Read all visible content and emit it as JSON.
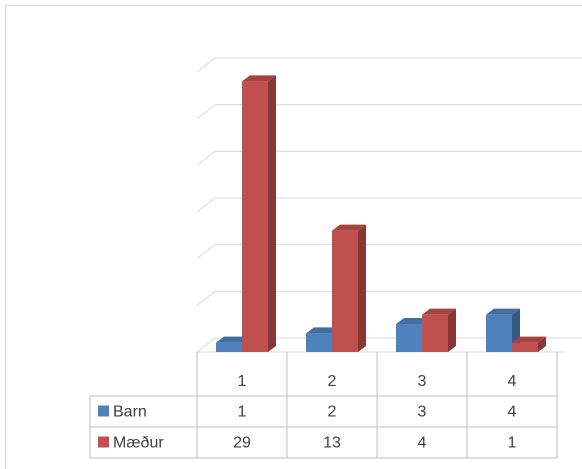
{
  "chart_data": {
    "type": "bar3d",
    "categories": [
      "1",
      "2",
      "3",
      "4"
    ],
    "series": [
      {
        "name": "Barn",
        "color": "#4f81bd",
        "values": [
          1,
          2,
          3,
          4
        ]
      },
      {
        "name": "Mæður",
        "color": "#c0504d",
        "values": [
          29,
          13,
          4,
          1
        ]
      }
    ],
    "ylim": [
      0,
      30
    ],
    "yticks": [
      0,
      5,
      10,
      15,
      20,
      25,
      30
    ],
    "grid": true,
    "legend": "table"
  }
}
